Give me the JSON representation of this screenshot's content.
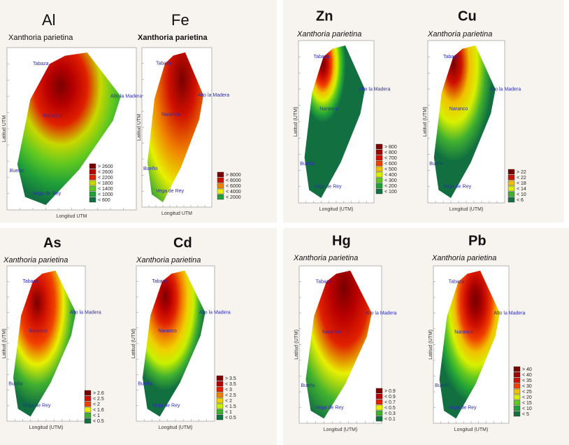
{
  "panels": [
    {
      "element": "Al",
      "species": "Xanthoria parietina",
      "x_label": "Longitud UTM",
      "y_label": "Latitud UTM",
      "places": [
        "Tabaza",
        "Alto la Madera",
        "Naranco",
        "Bueño",
        "Vega de Rey"
      ],
      "legend": [
        {
          "label": "> 2600",
          "color": "#7a0000"
        },
        {
          "label": "< 2600",
          "color": "#b80000"
        },
        {
          "label": "< 2200",
          "color": "#e02000"
        },
        {
          "label": "< 1800",
          "color": "#c8d800"
        },
        {
          "label": "< 1400",
          "color": "#60c820"
        },
        {
          "label": "< 1000",
          "color": "#20a038"
        },
        {
          "label": "< 600",
          "color": "#127040"
        }
      ]
    },
    {
      "element": "Fe",
      "species": "Xanthoria parietina",
      "x_label": "Longitud UTM",
      "y_label": "Latitud UTM",
      "places": [
        "Tabaza",
        "Alto la Madera",
        "Naranco",
        "Bueño",
        "Vega de Rey"
      ],
      "legend": [
        {
          "label": "> 8000",
          "color": "#7a0000"
        },
        {
          "label": "< 8000",
          "color": "#d01000"
        },
        {
          "label": "< 6000",
          "color": "#f08000"
        },
        {
          "label": "< 4000",
          "color": "#e8f000"
        },
        {
          "label": "< 2000",
          "color": "#20a038"
        }
      ]
    },
    {
      "element": "Zn",
      "species": "Xanthoria parietina",
      "x_label": "Longitud (UTM)",
      "y_label": "Latitud (UTM)",
      "places": [
        "Tabaza",
        "Alto la Madera",
        "Naranco",
        "Bueño",
        "Vega de Rey"
      ],
      "legend": [
        {
          "label": "> 800",
          "color": "#7a0000"
        },
        {
          "label": "< 800",
          "color": "#a00000"
        },
        {
          "label": "< 700",
          "color": "#d01000"
        },
        {
          "label": "< 600",
          "color": "#f04000"
        },
        {
          "label": "< 500",
          "color": "#f0c000"
        },
        {
          "label": "< 400",
          "color": "#d8f000"
        },
        {
          "label": "< 300",
          "color": "#60c820"
        },
        {
          "label": "< 200",
          "color": "#20a038"
        },
        {
          "label": "< 100",
          "color": "#127040"
        }
      ]
    },
    {
      "element": "Cu",
      "species": "Xanthoria parietina",
      "x_label": "Longitud (UTM)",
      "y_label": "Latitud (UTM)",
      "places": [
        "Tabaza",
        "Alto la Madera",
        "Naranco",
        "Bueño",
        "Vega de Rey"
      ],
      "legend": [
        {
          "label": "> 22",
          "color": "#7a0000"
        },
        {
          "label": "< 22",
          "color": "#d01000"
        },
        {
          "label": "< 18",
          "color": "#f0c000"
        },
        {
          "label": "< 14",
          "color": "#d8f000"
        },
        {
          "label": "< 10",
          "color": "#40b030"
        },
        {
          "label": "< 6",
          "color": "#127040"
        }
      ]
    },
    {
      "element": "As",
      "species": "Xanthoria parietina",
      "x_label": "Longitud (UTM)",
      "y_label": "Latitud (UTM)",
      "places": [
        "Tabaza",
        "Alto la Madera",
        "Naranco",
        "Bueño",
        "Vega de Rey"
      ],
      "legend": [
        {
          "label": "> 2.6",
          "color": "#7a0000"
        },
        {
          "label": "< 2.5",
          "color": "#d01000"
        },
        {
          "label": "< 2",
          "color": "#f04000"
        },
        {
          "label": "< 1.6",
          "color": "#e8f000"
        },
        {
          "label": "< 1",
          "color": "#40b030"
        },
        {
          "label": "< 0.5",
          "color": "#127040"
        }
      ]
    },
    {
      "element": "Cd",
      "species": "Xanthoria parietina",
      "x_label": "Longitud (UTM)",
      "y_label": "Latitud (UTM)",
      "places": [
        "Tabaza",
        "Alto la Madera",
        "Naranco",
        "Bueño",
        "Vega de Rey"
      ],
      "legend": [
        {
          "label": "> 3.5",
          "color": "#7a0000"
        },
        {
          "label": "< 3.5",
          "color": "#b80000"
        },
        {
          "label": "< 3",
          "color": "#e02000"
        },
        {
          "label": "< 2.5",
          "color": "#f08000"
        },
        {
          "label": "< 2",
          "color": "#f0d000"
        },
        {
          "label": "< 1.5",
          "color": "#c8f000"
        },
        {
          "label": "< 1",
          "color": "#40b030"
        },
        {
          "label": "< 0.5",
          "color": "#127040"
        }
      ]
    },
    {
      "element": "Hg",
      "species": "Xanthoria parietina",
      "x_label": "Longitud (UTM)",
      "y_label": "Latitud (UTM)",
      "places": [
        "Tabaza",
        "Alto la Madera",
        "Naranco",
        "Bueño",
        "Vega de Rey"
      ],
      "legend": [
        {
          "label": "> 0.9",
          "color": "#7a0000"
        },
        {
          "label": "< 0.9",
          "color": "#b80000"
        },
        {
          "label": "< 0.7",
          "color": "#e02000"
        },
        {
          "label": "< 0.5",
          "color": "#e8f000"
        },
        {
          "label": "< 0.3",
          "color": "#40b030"
        },
        {
          "label": "< 0.1",
          "color": "#127040"
        }
      ]
    },
    {
      "element": "Pb",
      "species": "Xanthoria parietina",
      "x_label": "Longitud (UTM)",
      "y_label": "Latitud (UTM)",
      "places": [
        "Tabaza",
        "Alto la Madera",
        "Naranco",
        "Bueño",
        "Vega de Rey"
      ],
      "legend": [
        {
          "label": "> 40",
          "color": "#7a0000"
        },
        {
          "label": "< 40",
          "color": "#a00000"
        },
        {
          "label": "< 35",
          "color": "#d01000"
        },
        {
          "label": "< 30",
          "color": "#f04000"
        },
        {
          "label": "< 25",
          "color": "#f0c000"
        },
        {
          "label": "< 20",
          "color": "#d8f000"
        },
        {
          "label": "< 15",
          "color": "#60c820"
        },
        {
          "label": "< 10",
          "color": "#20a038"
        },
        {
          "label": "< 5",
          "color": "#127040"
        }
      ]
    }
  ]
}
